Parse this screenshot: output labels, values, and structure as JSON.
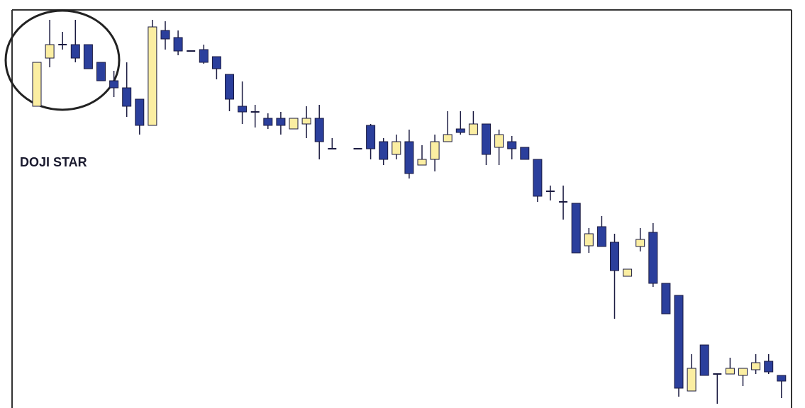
{
  "chart_data": {
    "type": "candlestick",
    "annotation": "DOJI STAR",
    "categories": [
      null,
      null,
      null,
      null,
      null,
      null,
      null,
      null,
      null,
      null,
      null,
      null,
      null,
      null,
      null,
      null,
      null,
      null,
      null,
      null,
      null,
      null,
      null,
      null,
      null,
      null,
      null,
      null,
      null,
      null,
      null,
      null,
      null,
      null,
      null,
      null,
      null,
      null,
      null,
      null,
      null,
      null,
      null,
      null,
      null,
      null,
      null,
      null,
      null,
      null,
      null,
      null,
      null,
      null,
      null,
      null,
      null,
      null,
      null
    ],
    "open": [
      85.2,
      98.8,
      102.6,
      102.6,
      102.6,
      97.6,
      92.4,
      90.4,
      87.2,
      79.8,
      106.6,
      104.6,
      100.8,
      101.2,
      99.2,
      94.2,
      85.2,
      83.6,
      81.8,
      81.8,
      78.8,
      80.2,
      81.8,
      73.2,
      null,
      73.2,
      79.8,
      75.2,
      71.6,
      75.2,
      68.6,
      70.2,
      75.2,
      78.8,
      77.2,
      80.2,
      73.6,
      75.2,
      73.6,
      70.2,
      61.2,
      58.2,
      57.8,
      45.8,
      51.2,
      46.8,
      37.2,
      45.6,
      49.6,
      35.2,
      31.8,
      4.8,
      17.8,
      9.6,
      9.6,
      9.2,
      10.8,
      13.2,
      9.2
    ],
    "high": [
      97.6,
      109.6,
      106.2,
      109.6,
      102.6,
      97.6,
      95.2,
      97.6,
      87.2,
      109.6,
      109.2,
      106.6,
      100.8,
      102.6,
      99.2,
      94.2,
      92.2,
      85.6,
      83.2,
      83.6,
      81.8,
      85.2,
      85.6,
      76.2,
      null,
      73.2,
      80.2,
      76.2,
      77.2,
      78.6,
      74.2,
      77.2,
      83.8,
      83.8,
      83.8,
      80.2,
      78.6,
      76.8,
      73.6,
      70.2,
      62.8,
      62.8,
      57.8,
      50.8,
      54.2,
      49.2,
      39.2,
      50.8,
      52.2,
      35.2,
      31.8,
      15.2,
      17.8,
      9.6,
      14.2,
      11.2,
      15.2,
      15.2,
      9.2
    ],
    "low": [
      85.2,
      96.2,
      101.2,
      97.6,
      95.8,
      92.4,
      87.8,
      82.2,
      77.2,
      79.8,
      101.2,
      99.6,
      100.8,
      97.2,
      92.8,
      83.8,
      80.2,
      79.2,
      78.8,
      77.2,
      78.8,
      76.2,
      70.2,
      73.2,
      null,
      73.2,
      70.2,
      68.6,
      70.2,
      64.8,
      68.6,
      66.8,
      75.2,
      77.2,
      77.2,
      68.6,
      68.6,
      70.2,
      70.2,
      58.2,
      58.6,
      53.2,
      43.8,
      43.8,
      45.6,
      25.2,
      37.2,
      44.2,
      34.2,
      26.6,
      3.2,
      4.8,
      9.2,
      1.2,
      9.6,
      6.2,
      9.6,
      9.6,
      2.8
    ],
    "close": [
      97.6,
      102.6,
      102.6,
      98.8,
      95.8,
      92.4,
      90.4,
      85.2,
      79.8,
      107.6,
      104.2,
      100.8,
      100.8,
      97.6,
      95.8,
      87.2,
      83.6,
      83.6,
      79.8,
      79.8,
      81.8,
      81.8,
      75.2,
      73.2,
      null,
      73.2,
      73.2,
      70.2,
      75.2,
      66.2,
      70.2,
      75.2,
      77.2,
      77.8,
      80.2,
      71.6,
      77.2,
      73.2,
      70.2,
      59.8,
      61.2,
      58.2,
      43.8,
      49.2,
      45.6,
      38.8,
      39.2,
      47.6,
      35.2,
      26.6,
      5.6,
      11.2,
      9.2,
      9.6,
      11.2,
      11.2,
      12.8,
      10.2,
      7.6
    ],
    "up_color": "#fbeea2",
    "down_color": "#2b3f9c",
    "ylim": [
      0,
      112.4
    ]
  }
}
